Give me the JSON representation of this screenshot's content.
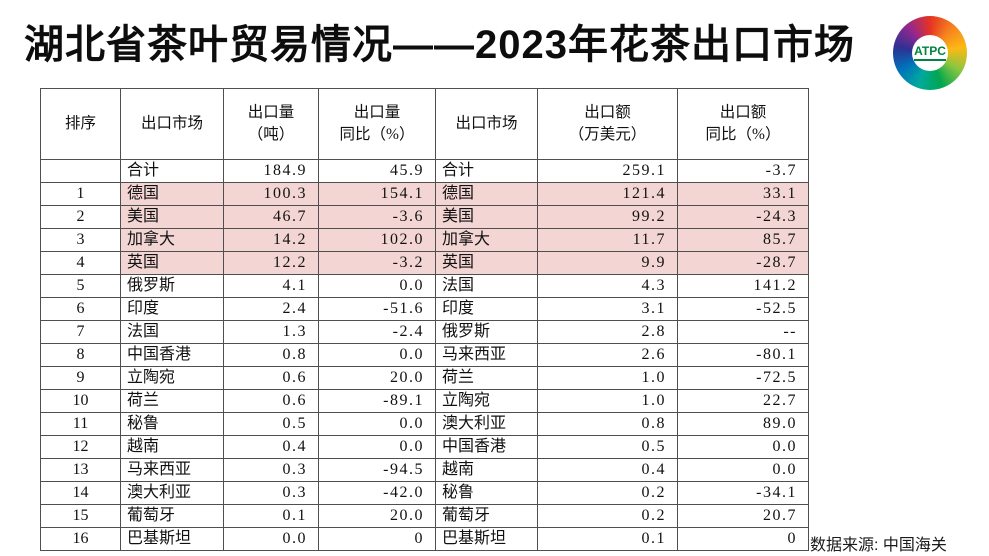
{
  "title": "湖北省茶叶贸易情况——2023年花茶出口市场",
  "logo": {
    "text": "ATPC",
    "swirl_colors": [
      "#e63322",
      "#f5821f",
      "#fdb913",
      "#8cc63f",
      "#00a651",
      "#00a99d",
      "#0072bc",
      "#2e3192",
      "#92278f",
      "#e63322"
    ],
    "text_color": "#00843d"
  },
  "source_note": "数据来源: 中国海关",
  "colors": {
    "highlight_row": "#f3d6d4",
    "table_border": "#4f4f4f"
  },
  "chart_data": {
    "type": "table",
    "title": "湖北省茶叶贸易情况——2023年花茶出口市场",
    "columns": [
      "排序",
      "出口市场",
      "出口量\n（吨）",
      "出口量\n同比（%）",
      "出口市场",
      "出口额\n（万美元）",
      "出口额\n同比（%）"
    ],
    "rows": [
      {
        "rank": "",
        "volume_market": "合计",
        "volume": "184.9",
        "volume_yoy": "45.9",
        "value_market": "合计",
        "value": "259.1",
        "value_yoy": "-3.7",
        "highlight": false
      },
      {
        "rank": "1",
        "volume_market": "德国",
        "volume": "100.3",
        "volume_yoy": "154.1",
        "value_market": "德国",
        "value": "121.4",
        "value_yoy": "33.1",
        "highlight": true
      },
      {
        "rank": "2",
        "volume_market": "美国",
        "volume": "46.7",
        "volume_yoy": "-3.6",
        "value_market": "美国",
        "value": "99.2",
        "value_yoy": "-24.3",
        "highlight": true
      },
      {
        "rank": "3",
        "volume_market": "加拿大",
        "volume": "14.2",
        "volume_yoy": "102.0",
        "value_market": "加拿大",
        "value": "11.7",
        "value_yoy": "85.7",
        "highlight": true
      },
      {
        "rank": "4",
        "volume_market": "英国",
        "volume": "12.2",
        "volume_yoy": "-3.2",
        "value_market": "英国",
        "value": "9.9",
        "value_yoy": "-28.7",
        "highlight": true
      },
      {
        "rank": "5",
        "volume_market": "俄罗斯",
        "volume": "4.1",
        "volume_yoy": "0.0",
        "value_market": "法国",
        "value": "4.3",
        "value_yoy": "141.2",
        "highlight": false
      },
      {
        "rank": "6",
        "volume_market": "印度",
        "volume": "2.4",
        "volume_yoy": "-51.6",
        "value_market": "印度",
        "value": "3.1",
        "value_yoy": "-52.5",
        "highlight": false
      },
      {
        "rank": "7",
        "volume_market": "法国",
        "volume": "1.3",
        "volume_yoy": "-2.4",
        "value_market": "俄罗斯",
        "value": "2.8",
        "value_yoy": "--",
        "highlight": false
      },
      {
        "rank": "8",
        "volume_market": "中国香港",
        "volume": "0.8",
        "volume_yoy": "0.0",
        "value_market": "马来西亚",
        "value": "2.6",
        "value_yoy": "-80.1",
        "highlight": false
      },
      {
        "rank": "9",
        "volume_market": "立陶宛",
        "volume": "0.6",
        "volume_yoy": "20.0",
        "value_market": "荷兰",
        "value": "1.0",
        "value_yoy": "-72.5",
        "highlight": false
      },
      {
        "rank": "10",
        "volume_market": "荷兰",
        "volume": "0.6",
        "volume_yoy": "-89.1",
        "value_market": "立陶宛",
        "value": "1.0",
        "value_yoy": "22.7",
        "highlight": false
      },
      {
        "rank": "11",
        "volume_market": "秘鲁",
        "volume": "0.5",
        "volume_yoy": "0.0",
        "value_market": "澳大利亚",
        "value": "0.8",
        "value_yoy": "89.0",
        "highlight": false
      },
      {
        "rank": "12",
        "volume_market": "越南",
        "volume": "0.4",
        "volume_yoy": "0.0",
        "value_market": "中国香港",
        "value": "0.5",
        "value_yoy": "0.0",
        "highlight": false
      },
      {
        "rank": "13",
        "volume_market": "马来西亚",
        "volume": "0.3",
        "volume_yoy": "-94.5",
        "value_market": "越南",
        "value": "0.4",
        "value_yoy": "0.0",
        "highlight": false
      },
      {
        "rank": "14",
        "volume_market": "澳大利亚",
        "volume": "0.3",
        "volume_yoy": "-42.0",
        "value_market": "秘鲁",
        "value": "0.2",
        "value_yoy": "-34.1",
        "highlight": false
      },
      {
        "rank": "15",
        "volume_market": "葡萄牙",
        "volume": "0.1",
        "volume_yoy": "20.0",
        "value_market": "葡萄牙",
        "value": "0.2",
        "value_yoy": "20.7",
        "highlight": false
      },
      {
        "rank": "16",
        "volume_market": "巴基斯坦",
        "volume": "0.0",
        "volume_yoy": "0",
        "value_market": "巴基斯坦",
        "value": "0.1",
        "value_yoy": "0",
        "highlight": false
      }
    ]
  }
}
